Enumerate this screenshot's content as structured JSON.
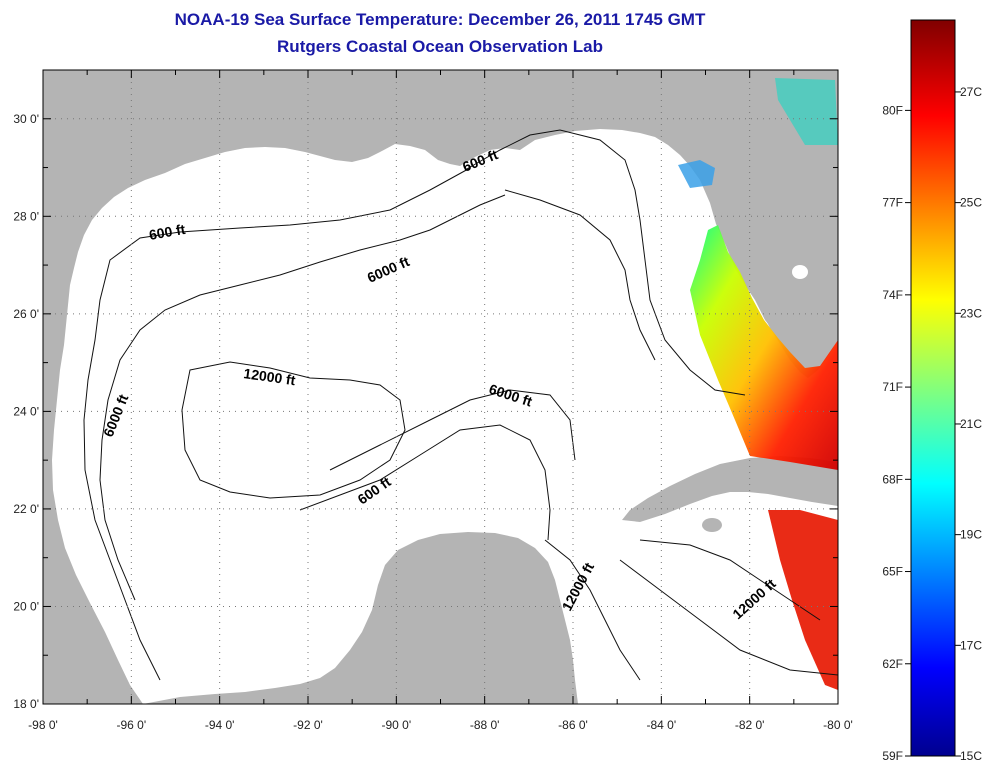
{
  "title": "NOAA-19 Sea Surface Temperature:  December 26, 2011 1745 GMT",
  "subtitle": "Rutgers Coastal Ocean Observation Lab",
  "map": {
    "lon_range": [
      -98,
      -80
    ],
    "lat_range": [
      18,
      31
    ],
    "lon_ticks": [
      "-98 0'",
      "-96 0'",
      "-94 0'",
      "-92 0'",
      "-90 0'",
      "-88 0'",
      "-86 0'",
      "-84 0'",
      "-82 0'",
      "-80 0'"
    ],
    "lat_ticks": [
      "18 0'",
      "20 0'",
      "22 0'",
      "24 0'",
      "26 0'",
      "28 0'",
      "30 0'"
    ],
    "grid": "dotted",
    "land_color": "#b4b4b4",
    "contour_labels": [
      "600 ft",
      "600 ft",
      "600 ft",
      "6000 ft",
      "6000 ft",
      "6000 ft",
      "12000 ft",
      "12000 ft",
      "12000 ft"
    ]
  },
  "colorbar": {
    "fahrenheit_labels": [
      "80F",
      "77F",
      "74F",
      "71F",
      "68F",
      "65F",
      "62F",
      "59F"
    ],
    "celsius_labels": [
      "27C",
      "25C",
      "23C",
      "21C",
      "19C",
      "17C",
      "15C"
    ],
    "colormap": "jet",
    "range_c": [
      15,
      28.3
    ]
  }
}
